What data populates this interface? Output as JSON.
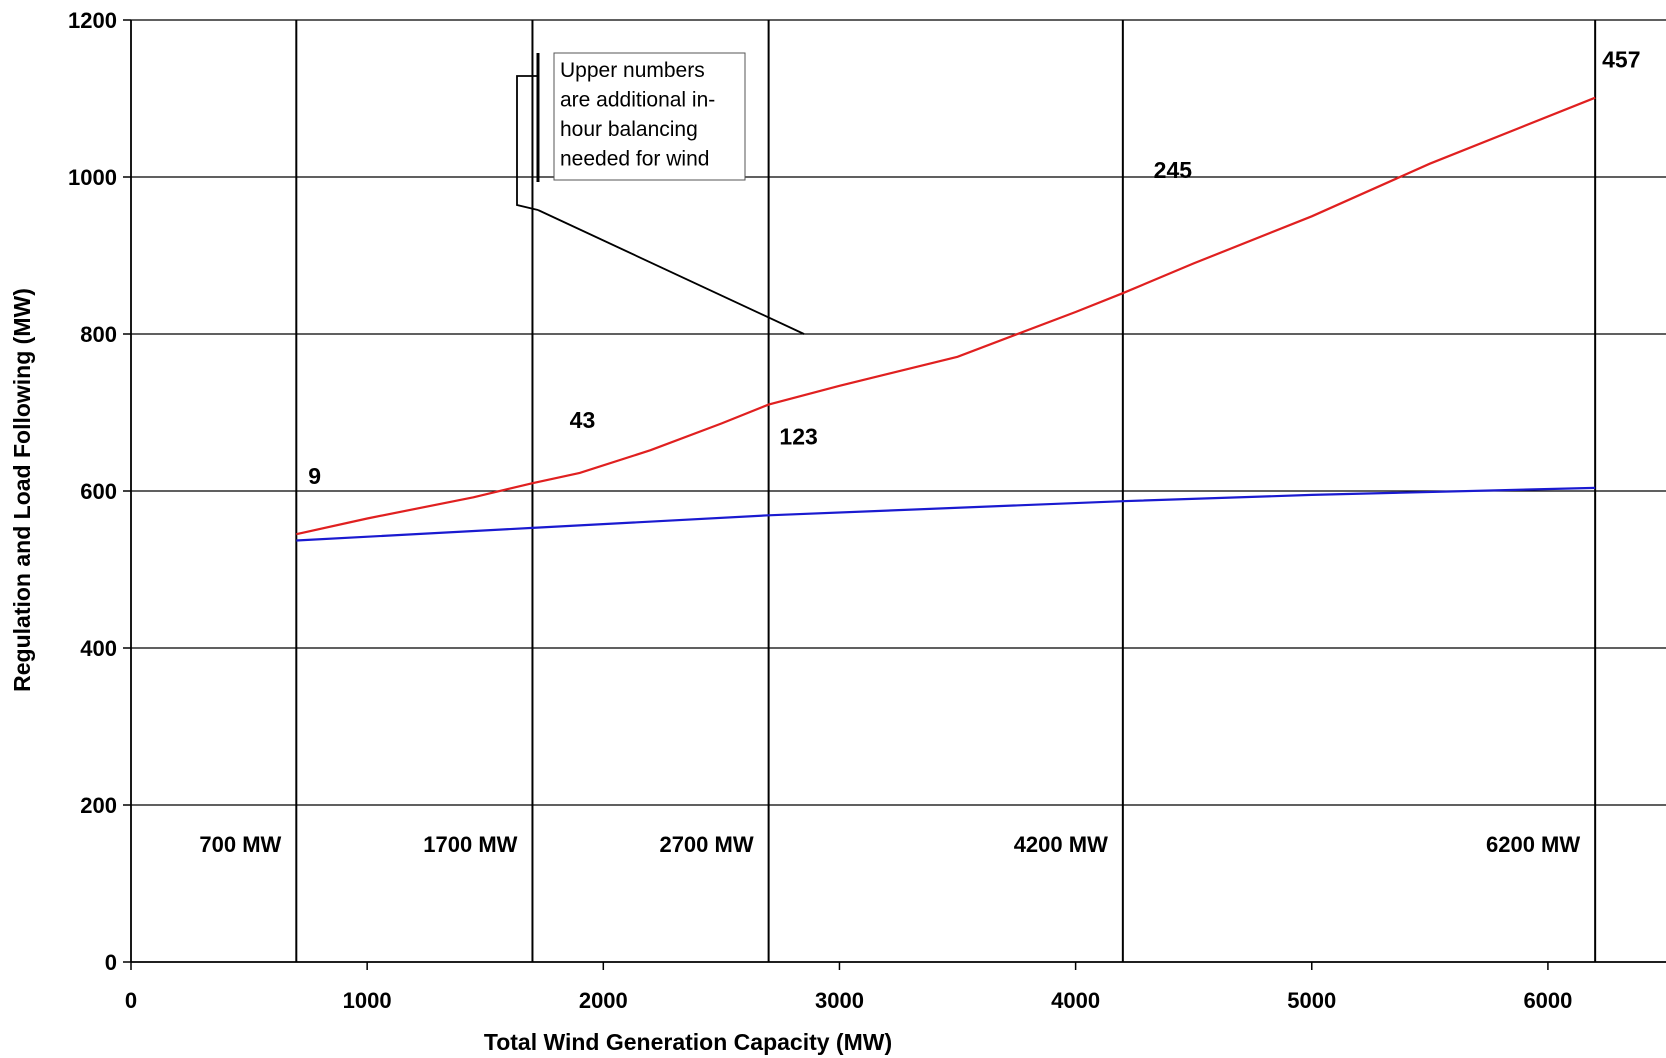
{
  "chart_data": {
    "type": "line",
    "title": "",
    "xlabel": "Total Wind Generation Capacity (MW)",
    "ylabel": "Regulation and Load Following (MW)",
    "xlim": [
      0,
      6500
    ],
    "ylim": [
      0,
      1200
    ],
    "x_ticks": [
      0,
      1000,
      2000,
      3000,
      4000,
      5000,
      6000
    ],
    "y_ticks": [
      0,
      200,
      400,
      600,
      800,
      1000,
      1200
    ],
    "grid": "horizontal",
    "series": [
      {
        "color": "#e02020",
        "x": [
          700,
          1000,
          1450,
          1700,
          1900,
          2200,
          2500,
          2700,
          3000,
          3500,
          4000,
          4200,
          4500,
          5000,
          5500,
          6200
        ],
        "y": [
          545,
          565,
          592,
          610,
          623,
          652,
          686,
          710,
          734,
          771,
          828,
          852,
          890,
          950,
          1017,
          1101
        ]
      },
      {
        "color": "#1a1ad0",
        "x": [
          700,
          1700,
          2700,
          4200,
          5000,
          6200
        ],
        "y": [
          537,
          553,
          569,
          587,
          595,
          604
        ]
      }
    ],
    "capacity_markers": [
      {
        "x": 700,
        "label": "700 MW"
      },
      {
        "x": 1700,
        "label": "1700 MW"
      },
      {
        "x": 2700,
        "label": "2700 MW"
      },
      {
        "x": 4200,
        "label": "4200 MW"
      },
      {
        "x": 6200,
        "label": "6200 MW"
      }
    ],
    "data_labels": [
      {
        "x": 700,
        "text": "9"
      },
      {
        "x": 1700,
        "text": "43"
      },
      {
        "x": 2700,
        "text": "123"
      },
      {
        "x": 4200,
        "text": "245"
      },
      {
        "x": 6200,
        "text": "457"
      }
    ],
    "annotation": {
      "lines": [
        "Upper numbers",
        "are additional in-",
        "hour balancing",
        "needed for wind"
      ],
      "points_to_x": 2850,
      "points_to_y": 800
    }
  }
}
